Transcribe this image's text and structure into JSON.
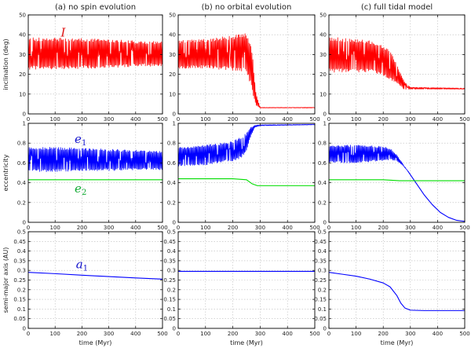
{
  "chart_data": [
    {
      "type": "line",
      "title": "(a) no spin evolution",
      "xlabel": "",
      "ylabel": "inclination (deg)",
      "xlim": [
        0,
        500
      ],
      "ylim": [
        0,
        50
      ],
      "xticks": [
        0,
        100,
        200,
        300,
        400,
        500
      ],
      "yticks": [
        0,
        10,
        20,
        30,
        40,
        50
      ],
      "grid": true,
      "annotations": [
        {
          "text": "I",
          "x": 130,
          "y": 39,
          "color": "#dd1111"
        }
      ],
      "series": [
        {
          "color": "#ff0000",
          "style": "band",
          "x": [
            0,
            100,
            200,
            300,
            400,
            500
          ],
          "upper": [
            38.5,
            38.5,
            38.2,
            37.6,
            37.0,
            36.5
          ],
          "lower": [
            22.5,
            22.5,
            22.8,
            23.3,
            23.8,
            24.3
          ]
        }
      ]
    },
    {
      "type": "line",
      "title": "(b) no orbital evolution",
      "xlabel": "",
      "ylabel": "",
      "xlim": [
        0,
        500
      ],
      "ylim": [
        0,
        50
      ],
      "xticks": [
        0,
        100,
        200,
        300,
        400,
        500
      ],
      "yticks": [
        0,
        10,
        20,
        30,
        40,
        50
      ],
      "grid": true,
      "series": [
        {
          "color": "#ff0000",
          "style": "band",
          "x": [
            0,
            100,
            200,
            250,
            270,
            285,
            300,
            500
          ],
          "upper": [
            37,
            38,
            39.5,
            41,
            33,
            10,
            3.3,
            3.3
          ],
          "lower": [
            23,
            23,
            22,
            21,
            12,
            4,
            3.0,
            3.0
          ]
        }
      ]
    },
    {
      "type": "line",
      "title": "(c) full tidal model",
      "xlabel": "",
      "ylabel": "",
      "xlim": [
        0,
        500
      ],
      "ylim": [
        0,
        50
      ],
      "xticks": [
        0,
        100,
        200,
        300,
        400,
        500
      ],
      "yticks": [
        0,
        10,
        20,
        30,
        40,
        50
      ],
      "grid": true,
      "series": [
        {
          "color": "#ff0000",
          "style": "band",
          "x": [
            0,
            80,
            160,
            220,
            250,
            280,
            300,
            500
          ],
          "upper": [
            39,
            38,
            37,
            33,
            25,
            16,
            13.5,
            13.0
          ],
          "lower": [
            21,
            21,
            21,
            18,
            15,
            12,
            12.5,
            12.5
          ]
        }
      ]
    },
    {
      "type": "line",
      "title": "",
      "xlabel": "",
      "ylabel": "eccentricity",
      "xlim": [
        0,
        500
      ],
      "ylim": [
        0,
        1
      ],
      "xticks": [
        0,
        100,
        200,
        300,
        400,
        500
      ],
      "yticks": [
        0,
        0.2,
        0.4,
        0.6,
        0.8,
        1
      ],
      "grid": true,
      "annotations": [
        {
          "text": "e",
          "sub": "1",
          "x": 195,
          "y": 0.8,
          "color": "#1111cc"
        },
        {
          "text": "e",
          "sub": "2",
          "x": 195,
          "y": 0.3,
          "color": "#11aa33"
        }
      ],
      "series": [
        {
          "color": "#0000ff",
          "style": "band",
          "x": [
            0,
            100,
            200,
            300,
            400,
            500
          ],
          "upper": [
            0.76,
            0.76,
            0.75,
            0.74,
            0.73,
            0.72
          ],
          "lower": [
            0.51,
            0.51,
            0.52,
            0.52,
            0.53,
            0.53
          ]
        },
        {
          "color": "#00dd00",
          "style": "line",
          "x": [
            0,
            500
          ],
          "y": [
            0.43,
            0.43
          ]
        }
      ]
    },
    {
      "type": "line",
      "title": "",
      "xlabel": "",
      "ylabel": "",
      "xlim": [
        0,
        500
      ],
      "ylim": [
        0,
        1
      ],
      "xticks": [
        0,
        100,
        200,
        300,
        400,
        500
      ],
      "yticks": [
        0,
        0.2,
        0.4,
        0.6,
        0.8,
        1
      ],
      "grid": true,
      "series": [
        {
          "color": "#0000ff",
          "style": "band",
          "x": [
            0,
            100,
            200,
            230,
            250,
            265,
            280,
            300,
            500
          ],
          "upper": [
            0.76,
            0.78,
            0.82,
            0.86,
            0.9,
            0.96,
            0.98,
            0.985,
            0.99
          ],
          "lower": [
            0.56,
            0.58,
            0.62,
            0.65,
            0.72,
            0.86,
            0.96,
            0.975,
            0.985
          ]
        },
        {
          "color": "#00dd00",
          "style": "line",
          "x": [
            0,
            200,
            250,
            270,
            290,
            500
          ],
          "y": [
            0.44,
            0.44,
            0.43,
            0.39,
            0.37,
            0.37
          ]
        }
      ]
    },
    {
      "type": "line",
      "title": "",
      "xlabel": "",
      "ylabel": "",
      "xlim": [
        0,
        500
      ],
      "ylim": [
        0,
        1
      ],
      "xticks": [
        0,
        100,
        200,
        300,
        400,
        500
      ],
      "yticks": [
        0,
        0.2,
        0.4,
        0.6,
        0.8,
        1
      ],
      "grid": true,
      "series": [
        {
          "color": "#0000ff",
          "style": "band",
          "x": [
            0,
            100,
            200,
            230,
            250,
            270,
            290
          ],
          "upper": [
            0.78,
            0.78,
            0.77,
            0.74,
            0.68,
            0.6,
            0.52
          ],
          "lower": [
            0.6,
            0.6,
            0.62,
            0.63,
            0.62,
            0.58,
            0.52
          ]
        },
        {
          "color": "#0000ff",
          "style": "line",
          "x": [
            290,
            320,
            350,
            380,
            410,
            440,
            470,
            500
          ],
          "y": [
            0.52,
            0.4,
            0.28,
            0.18,
            0.1,
            0.05,
            0.02,
            0.01
          ]
        },
        {
          "color": "#00dd00",
          "style": "line",
          "x": [
            0,
            200,
            260,
            500
          ],
          "y": [
            0.43,
            0.43,
            0.42,
            0.42
          ]
        }
      ]
    },
    {
      "type": "line",
      "title": "",
      "xlabel": "time (Myr)",
      "ylabel": "semi-major axis (AU)",
      "xlim": [
        0,
        500
      ],
      "ylim": [
        0,
        0.5
      ],
      "xticks": [
        0,
        100,
        200,
        300,
        400,
        500
      ],
      "yticks": [
        0,
        0.05,
        0.1,
        0.15,
        0.2,
        0.25,
        0.3,
        0.35,
        0.4,
        0.45,
        0.5
      ],
      "grid": true,
      "annotations": [
        {
          "text": "a",
          "sub": "1",
          "x": 200,
          "y": 0.31,
          "color": "#1111cc"
        }
      ],
      "series": [
        {
          "color": "#0000ff",
          "style": "line",
          "x": [
            0,
            100,
            200,
            300,
            400,
            500
          ],
          "y": [
            0.29,
            0.283,
            0.275,
            0.268,
            0.261,
            0.255
          ]
        }
      ]
    },
    {
      "type": "line",
      "title": "",
      "xlabel": "time (Myr)",
      "ylabel": "",
      "xlim": [
        0,
        500
      ],
      "ylim": [
        0,
        0.5
      ],
      "xticks": [
        0,
        100,
        200,
        300,
        400,
        500
      ],
      "yticks": [
        0,
        0.05,
        0.1,
        0.15,
        0.2,
        0.25,
        0.3,
        0.35,
        0.4,
        0.45,
        0.5
      ],
      "grid": true,
      "series": [
        {
          "color": "#0000ff",
          "style": "line",
          "x": [
            0,
            500
          ],
          "y": [
            0.295,
            0.295
          ]
        }
      ]
    },
    {
      "type": "line",
      "title": "",
      "xlabel": "time (Myr)",
      "ylabel": "",
      "xlim": [
        0,
        500
      ],
      "ylim": [
        0,
        0.5
      ],
      "xticks": [
        0,
        100,
        200,
        300,
        400,
        500
      ],
      "yticks": [
        0,
        0.05,
        0.1,
        0.15,
        0.2,
        0.25,
        0.3,
        0.35,
        0.4,
        0.45,
        0.5
      ],
      "grid": true,
      "series": [
        {
          "color": "#0000ff",
          "style": "line",
          "x": [
            0,
            50,
            100,
            150,
            200,
            225,
            250,
            265,
            280,
            300,
            350,
            400,
            500
          ],
          "y": [
            0.29,
            0.28,
            0.27,
            0.255,
            0.235,
            0.215,
            0.17,
            0.13,
            0.105,
            0.094,
            0.092,
            0.092,
            0.092
          ]
        }
      ]
    }
  ]
}
